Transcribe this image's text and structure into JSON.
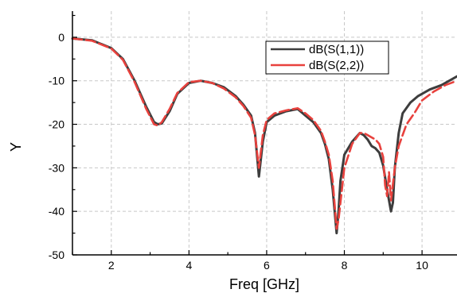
{
  "chart_data": {
    "type": "line",
    "title": "",
    "xlabel": "Freq [GHz]",
    "ylabel": "Y",
    "xlim": [
      1,
      10.9
    ],
    "ylim": [
      -50,
      6
    ],
    "xticks": [
      2,
      4,
      6,
      8,
      10
    ],
    "xtick_labels": [
      "2",
      "4",
      "6",
      "8",
      "10"
    ],
    "yticks": [
      0,
      -10,
      -20,
      -30,
      -40,
      -50
    ],
    "ytick_labels": [
      "0",
      "-10",
      "-20",
      "-30",
      "-40",
      "-50"
    ],
    "grid": true,
    "legend_position": "top-right",
    "series": [
      {
        "name": "dB(S(1,1))",
        "color": "#3d3d3d",
        "style": "solid",
        "x": [
          1.0,
          1.5,
          2.0,
          2.3,
          2.6,
          2.9,
          3.1,
          3.2,
          3.3,
          3.5,
          3.7,
          4.0,
          4.3,
          4.6,
          4.9,
          5.2,
          5.4,
          5.6,
          5.7,
          5.8,
          5.9,
          6.0,
          6.2,
          6.5,
          6.8,
          7.0,
          7.2,
          7.4,
          7.5,
          7.6,
          7.7,
          7.8,
          7.85,
          7.9,
          8.0,
          8.2,
          8.4,
          8.5,
          8.6,
          8.7,
          8.8,
          8.9,
          9.0,
          9.1,
          9.2,
          9.25,
          9.3,
          9.4,
          9.5,
          9.7,
          9.9,
          10.2,
          10.5,
          10.9
        ],
        "values": [
          -0.3,
          -0.7,
          -2.5,
          -5.0,
          -10.0,
          -16.0,
          -19.5,
          -20.0,
          -19.8,
          -17.0,
          -13.0,
          -10.5,
          -10.0,
          -10.5,
          -11.5,
          -13.5,
          -15.5,
          -18.0,
          -22.0,
          -32.0,
          -24.0,
          -19.5,
          -18.0,
          -17.0,
          -16.5,
          -18.0,
          -19.5,
          -22.0,
          -24.5,
          -28.0,
          -35.0,
          -45.0,
          -40.0,
          -33.0,
          -27.0,
          -24.0,
          -22.0,
          -22.5,
          -23.5,
          -25.0,
          -25.5,
          -26.5,
          -29.5,
          -35.0,
          -40.0,
          -38.0,
          -30.0,
          -22.0,
          -17.5,
          -15.0,
          -13.5,
          -12.0,
          -11.0,
          -9.0
        ]
      },
      {
        "name": "dB(S(2,2))",
        "color": "#e8413d",
        "style": "dashed",
        "x": [
          1.0,
          1.5,
          2.0,
          2.3,
          2.6,
          2.9,
          3.1,
          3.2,
          3.3,
          3.5,
          3.7,
          4.0,
          4.3,
          4.6,
          4.9,
          5.2,
          5.4,
          5.6,
          5.7,
          5.8,
          5.9,
          6.0,
          6.2,
          6.5,
          6.8,
          7.0,
          7.2,
          7.4,
          7.5,
          7.6,
          7.7,
          7.8,
          7.85,
          7.9,
          8.0,
          8.2,
          8.4,
          8.5,
          8.6,
          8.7,
          8.8,
          8.9,
          9.0,
          9.05,
          9.1,
          9.15,
          9.2,
          9.3,
          9.4,
          9.6,
          9.8,
          10.0,
          10.3,
          10.6,
          10.9
        ],
        "values": [
          -0.3,
          -0.8,
          -2.6,
          -5.2,
          -10.3,
          -16.5,
          -20.0,
          -20.3,
          -19.5,
          -16.5,
          -12.8,
          -10.3,
          -10.0,
          -10.5,
          -11.8,
          -13.8,
          -15.8,
          -18.5,
          -22.5,
          -30.0,
          -22.5,
          -19.0,
          -17.5,
          -16.8,
          -16.3,
          -17.5,
          -19.0,
          -21.5,
          -24.0,
          -27.0,
          -33.0,
          -44.0,
          -42.0,
          -38.0,
          -30.0,
          -24.5,
          -22.0,
          -22.0,
          -22.5,
          -23.0,
          -23.5,
          -24.5,
          -27.5,
          -34.0,
          -36.5,
          -31.0,
          -37.5,
          -30.0,
          -25.0,
          -20.0,
          -17.5,
          -14.5,
          -12.5,
          -11.0,
          -10.0
        ]
      }
    ]
  }
}
